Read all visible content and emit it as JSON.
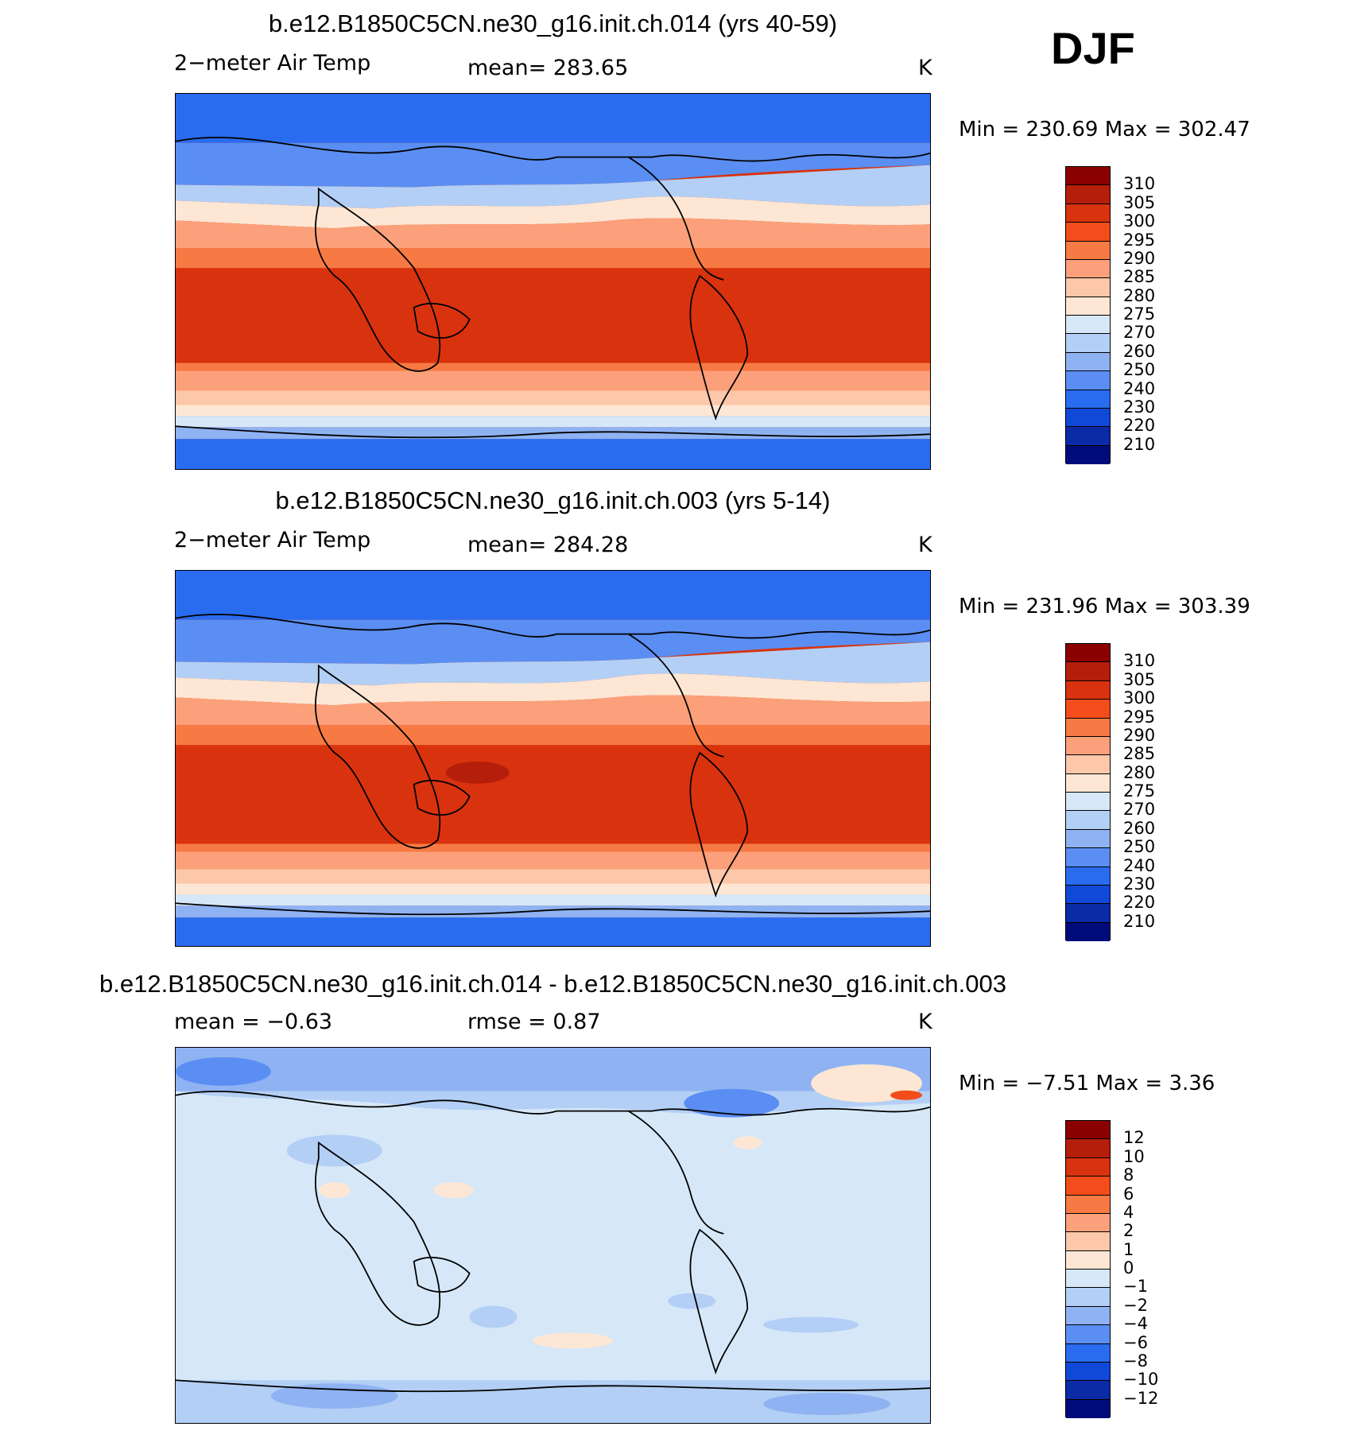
{
  "season": "DJF",
  "panels": [
    {
      "title": "b.e12.B1850C5CN.ne30_g16.init.ch.014 (yrs 40-59)",
      "left_label": "2−meter Air Temp",
      "center_label": "mean=  283.65",
      "units": "K",
      "minmax": "Min  =  230.69  Max  =  302.47",
      "colorbar_labels": [
        "310",
        "305",
        "300",
        "295",
        "290",
        "285",
        "280",
        "275",
        "270",
        "260",
        "250",
        "240",
        "230",
        "220",
        "210"
      ]
    },
    {
      "title": "b.e12.B1850C5CN.ne30_g16.init.ch.003 (yrs 5-14)",
      "left_label": "2−meter Air Temp",
      "center_label": "mean=  284.28",
      "units": "K",
      "minmax": "Min  =  231.96  Max  =  303.39",
      "colorbar_labels": [
        "310",
        "305",
        "300",
        "295",
        "290",
        "285",
        "280",
        "275",
        "270",
        "260",
        "250",
        "240",
        "230",
        "220",
        "210"
      ]
    },
    {
      "title": "b.e12.B1850C5CN.ne30_g16.init.ch.014 - b.e12.B1850C5CN.ne30_g16.init.ch.003",
      "left_label": "mean =    −0.63",
      "center_label": "rmse =     0.87",
      "units": "K",
      "minmax": "Min  =    −7.51  Max  =     3.36",
      "colorbar_labels": [
        "12",
        "10",
        "8",
        "6",
        "4",
        "2",
        "1",
        "0",
        "−1",
        "−2",
        "−4",
        "−6",
        "−8",
        "−10",
        "−12"
      ]
    }
  ],
  "colors": {
    "colorbar": [
      "#8b0000",
      "#b51e0a",
      "#d8330e",
      "#f24d1a",
      "#f77a44",
      "#fba07a",
      "#fdc7a9",
      "#fde7d4",
      "#d6e8f8",
      "#b3cff5",
      "#8fb2f2",
      "#5b8ef2",
      "#2a6cf0",
      "#1048d8",
      "#0a2aa6",
      "#000c7a"
    ],
    "land_outline": "#000000"
  }
}
